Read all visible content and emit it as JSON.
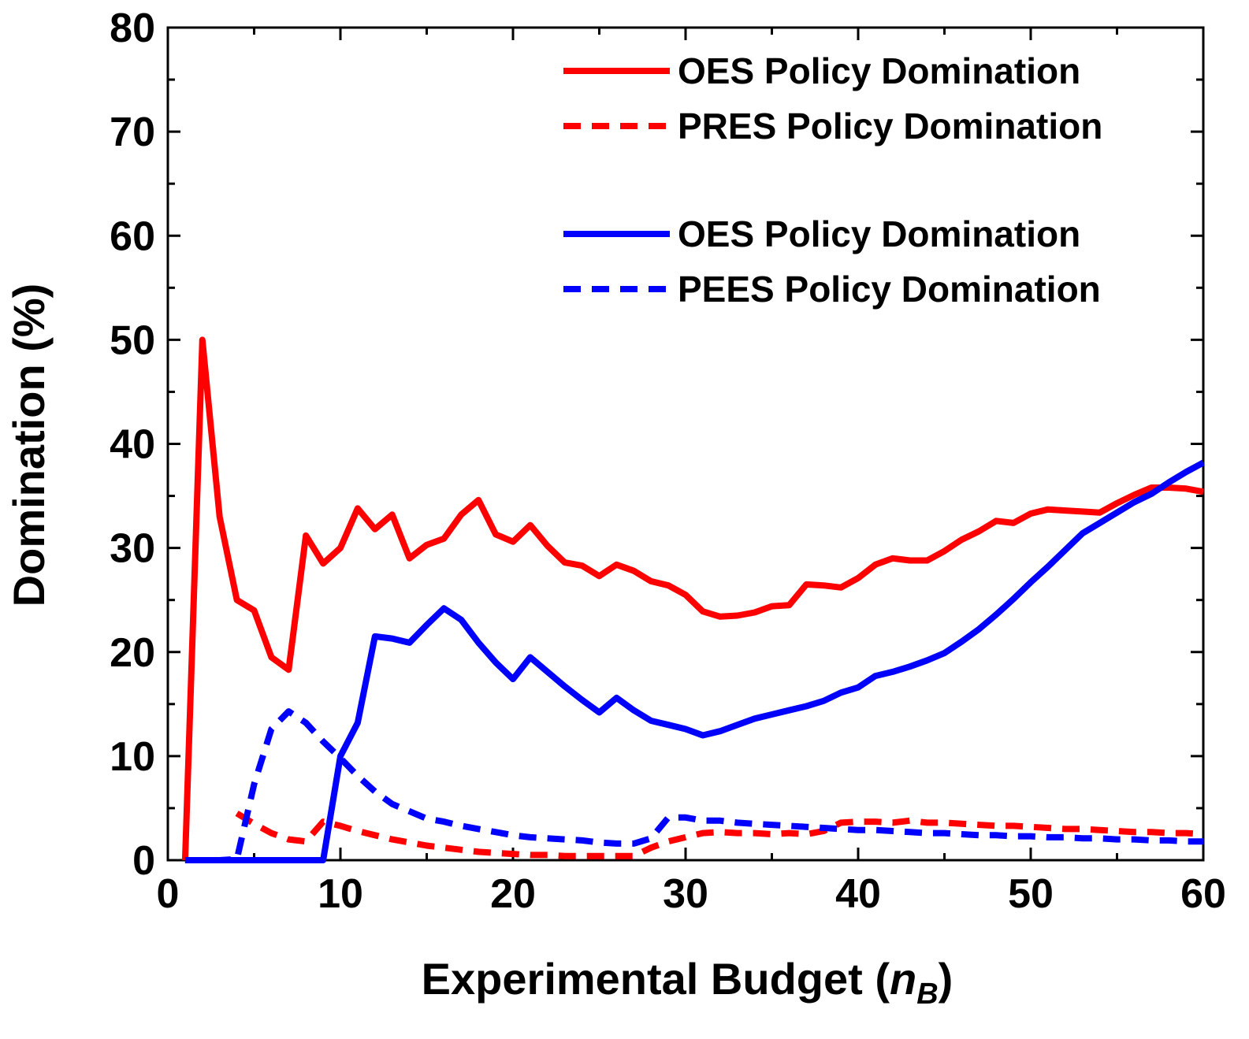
{
  "chart_data": {
    "type": "line",
    "xlabel_main": "Experimental Budget (",
    "xlabel_var": "n",
    "xlabel_sub": "B",
    "xlabel_close": ")",
    "ylabel": "Domination (%)",
    "xlim": [
      0,
      60
    ],
    "ylim": [
      0,
      80
    ],
    "x_ticks": [
      0,
      10,
      20,
      30,
      40,
      50,
      60
    ],
    "y_ticks": [
      0,
      10,
      20,
      30,
      40,
      50,
      60,
      70,
      80
    ],
    "grid": false,
    "legend_position": "top-right",
    "series": [
      {
        "name": "OES Policy Domination",
        "color": "#ff0000",
        "dash": "solid",
        "x": [
          1,
          2,
          3,
          4,
          5,
          6,
          7,
          8,
          9,
          10,
          11,
          12,
          13,
          14,
          15,
          16,
          17,
          18,
          19,
          20,
          21,
          22,
          23,
          24,
          25,
          26,
          27,
          28,
          29,
          30,
          31,
          32,
          33,
          34,
          35,
          36,
          37,
          38,
          39,
          40,
          41,
          42,
          43,
          44,
          45,
          46,
          47,
          48,
          49,
          50,
          51,
          52,
          53,
          54,
          55,
          56,
          57,
          58,
          59,
          60
        ],
        "y": [
          0,
          50,
          33,
          25,
          24,
          19.5,
          18.3,
          31.2,
          28.5,
          30,
          33.8,
          31.8,
          33.2,
          29,
          30.3,
          30.9,
          33.2,
          34.6,
          31.3,
          30.6,
          32.2,
          30.2,
          28.6,
          28.3,
          27.3,
          28.4,
          27.8,
          26.8,
          26.4,
          25.5,
          23.9,
          23.4,
          23.5,
          23.8,
          24.4,
          24.5,
          26.5,
          26.4,
          26.2,
          27.1,
          28.4,
          29,
          28.8,
          28.8,
          29.7,
          30.8,
          31.6,
          32.6,
          32.4,
          33.3,
          33.7,
          33.6,
          33.5,
          33.4,
          34.3,
          35.1,
          35.8,
          35.8,
          35.7,
          35.4
        ]
      },
      {
        "name": "PRES Policy Domination",
        "color": "#ff0000",
        "dash": "dashed",
        "x": [
          4,
          5,
          6,
          7,
          8,
          9,
          10,
          11,
          12,
          13,
          14,
          15,
          16,
          17,
          18,
          19,
          20,
          21,
          22,
          23,
          24,
          25,
          26,
          27,
          28,
          29,
          30,
          31,
          32,
          33,
          34,
          35,
          36,
          37,
          38,
          39,
          40,
          41,
          42,
          43,
          44,
          45,
          46,
          47,
          48,
          49,
          50,
          51,
          52,
          53,
          54,
          55,
          56,
          57,
          58,
          59,
          60
        ],
        "y": [
          4.5,
          3.5,
          2.6,
          2,
          1.8,
          3.7,
          3.3,
          2.8,
          2.4,
          2,
          1.7,
          1.4,
          1.2,
          1,
          0.8,
          0.7,
          0.6,
          0.5,
          0.5,
          0.4,
          0.4,
          0.4,
          0.4,
          0.4,
          1.2,
          1.8,
          2.2,
          2.6,
          2.7,
          2.6,
          2.6,
          2.5,
          2.6,
          2.5,
          2.8,
          3.6,
          3.7,
          3.7,
          3.6,
          3.8,
          3.6,
          3.6,
          3.5,
          3.4,
          3.3,
          3.3,
          3.2,
          3.1,
          3,
          3,
          2.9,
          2.8,
          2.7,
          2.7,
          2.6,
          2.6,
          2.5
        ]
      },
      {
        "name": "OES Policy Domination",
        "color": "#0000ff",
        "dash": "solid",
        "x": [
          1,
          2,
          3,
          4,
          5,
          6,
          7,
          8,
          9,
          10,
          11,
          12,
          13,
          14,
          15,
          16,
          17,
          18,
          19,
          20,
          21,
          22,
          23,
          24,
          25,
          26,
          27,
          28,
          29,
          30,
          31,
          32,
          33,
          34,
          35,
          36,
          37,
          38,
          39,
          40,
          41,
          42,
          43,
          44,
          45,
          46,
          47,
          48,
          49,
          50,
          51,
          52,
          53,
          54,
          55,
          56,
          57,
          58,
          59,
          60
        ],
        "y": [
          0,
          0,
          0,
          0,
          0,
          0,
          0,
          0,
          0,
          10,
          13.2,
          21.5,
          21.3,
          20.9,
          22.6,
          24.2,
          23.1,
          20.9,
          19,
          17.4,
          19.5,
          18.1,
          16.7,
          15.4,
          14.2,
          15.6,
          14.4,
          13.4,
          13,
          12.6,
          12,
          12.4,
          13,
          13.6,
          14,
          14.4,
          14.8,
          15.3,
          16.1,
          16.6,
          17.7,
          18.1,
          18.6,
          19.2,
          19.9,
          21,
          22.2,
          23.6,
          25.1,
          26.7,
          28.2,
          29.8,
          31.4,
          32.4,
          33.4,
          34.4,
          35.2,
          36.3,
          37.3,
          38.2
        ]
      },
      {
        "name": "PEES Policy Domination",
        "color": "#0000ff",
        "dash": "dashed",
        "x": [
          1,
          2,
          3,
          4,
          5,
          6,
          7,
          8,
          9,
          10,
          11,
          12,
          13,
          14,
          15,
          16,
          17,
          18,
          19,
          20,
          21,
          22,
          23,
          24,
          25,
          26,
          27,
          28,
          29,
          30,
          31,
          32,
          33,
          34,
          35,
          36,
          37,
          38,
          39,
          40,
          41,
          42,
          43,
          44,
          45,
          46,
          47,
          48,
          49,
          50,
          51,
          52,
          53,
          54,
          55,
          56,
          57,
          58,
          59,
          60
        ],
        "y": [
          0,
          0,
          0,
          0.1,
          7.3,
          12.6,
          14.3,
          13.2,
          11.4,
          9.8,
          8.1,
          6.6,
          5.4,
          4.7,
          4,
          3.7,
          3.3,
          3,
          2.7,
          2.4,
          2.2,
          2.1,
          2,
          1.9,
          1.7,
          1.6,
          1.6,
          2.1,
          4.1,
          4.1,
          3.8,
          3.8,
          3.6,
          3.5,
          3.4,
          3.3,
          3.2,
          3.1,
          3,
          2.9,
          2.9,
          2.8,
          2.7,
          2.6,
          2.6,
          2.5,
          2.4,
          2.4,
          2.3,
          2.3,
          2.2,
          2.2,
          2.1,
          2.1,
          2,
          2,
          1.9,
          1.9,
          1.8,
          1.8
        ]
      }
    ],
    "legend": [
      {
        "label": "OES Policy Domination",
        "color": "#ff0000",
        "dash": "solid"
      },
      {
        "label": "PRES Policy Domination",
        "color": "#ff0000",
        "dash": "dashed"
      },
      {
        "label": "OES Policy Domination",
        "color": "#0000ff",
        "dash": "solid"
      },
      {
        "label": "PEES Policy Domination",
        "color": "#0000ff",
        "dash": "dashed"
      }
    ]
  }
}
